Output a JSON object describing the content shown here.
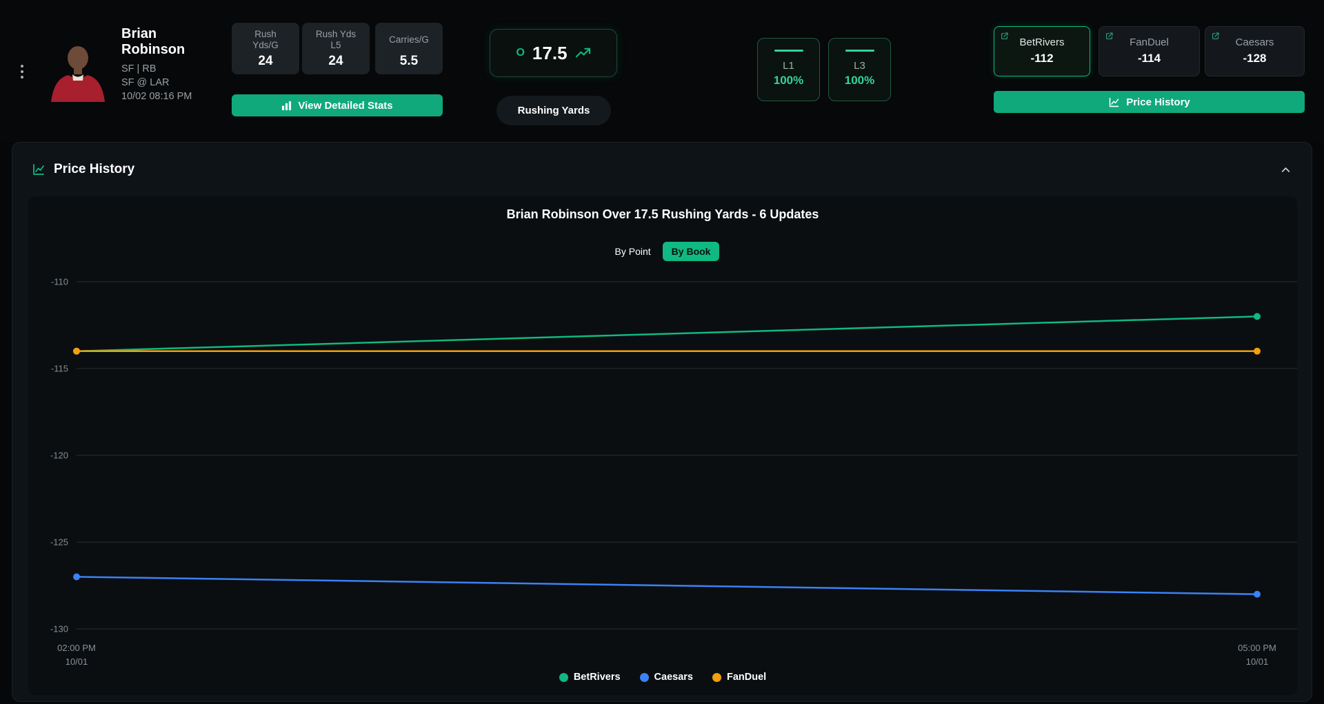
{
  "colors": {
    "accent": "#0fa97c",
    "green": "#10b981",
    "blue": "#3b82f6",
    "orange": "#f59e0b"
  },
  "header": {
    "player": {
      "name": "Brian Robinson",
      "team_pos": "SF | RB",
      "matchup": "SF @ LAR",
      "datetime": "10/02 08:16 PM"
    },
    "stats": [
      {
        "label": "Rush\nYds/G",
        "value": "24"
      },
      {
        "label": "Rush Yds\nL5",
        "value": "24"
      },
      {
        "label": "Carries/G",
        "value": "5.5"
      }
    ],
    "line": {
      "side": "O",
      "value": "17.5",
      "market": "Rushing Yards"
    },
    "hit_rates": [
      {
        "label": "L1",
        "value": "100%"
      },
      {
        "label": "L3",
        "value": "100%"
      }
    ],
    "books": [
      {
        "name": "BetRivers",
        "odds": "-112"
      },
      {
        "name": "FanDuel",
        "odds": "-114"
      },
      {
        "name": "Caesars",
        "odds": "-128"
      }
    ],
    "buttons": {
      "view_detailed_stats": "View Detailed Stats",
      "price_history": "Price History"
    }
  },
  "panel": {
    "title": "Price History",
    "toggles": {
      "by_point": "By Point",
      "by_book": "By Book"
    }
  },
  "chart_data": {
    "type": "line",
    "title": "Brian Robinson Over 17.5 Rushing Yards - 6 Updates",
    "x_labels": [
      {
        "time": "02:00 PM",
        "date": "10/01"
      },
      {
        "time": "05:00 PM",
        "date": "10/01"
      }
    ],
    "y_ticks": [
      -110,
      -115,
      -120,
      -125,
      -130
    ],
    "ylim": [
      -130.5,
      -109.5
    ],
    "grid": true,
    "legend_position": "bottom",
    "series": [
      {
        "name": "BetRivers",
        "color": "#10b981",
        "values": [
          -114,
          -112
        ]
      },
      {
        "name": "Caesars",
        "color": "#3b82f6",
        "values": [
          -127,
          -128
        ]
      },
      {
        "name": "FanDuel",
        "color": "#f59e0b",
        "values": [
          -114,
          -114
        ]
      }
    ]
  }
}
